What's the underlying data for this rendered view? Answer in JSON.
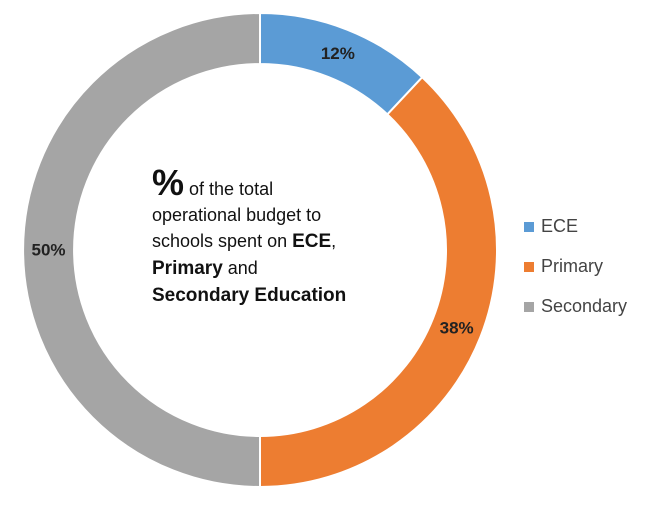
{
  "chart_data": {
    "type": "pie",
    "subtype": "donut",
    "categories": [
      "ECE",
      "Primary",
      "Secondary"
    ],
    "values": [
      12,
      38,
      50
    ],
    "value_labels": [
      "12%",
      "38%",
      "50%"
    ],
    "colors": [
      "#5b9bd5",
      "#ed7d31",
      "#a5a5a5"
    ],
    "legend": {
      "placement": "right",
      "entries": [
        "ECE",
        "Primary",
        "Secondary"
      ]
    },
    "center_text": {
      "symbol": "%",
      "part1": " of the total",
      "part2": "operational budget to",
      "part3": "schools spent on ",
      "bold_ece": "ECE",
      "comma": ",",
      "bold_primary": "Primary",
      "and": " and",
      "bold_secondary": "Secondary Education"
    }
  }
}
